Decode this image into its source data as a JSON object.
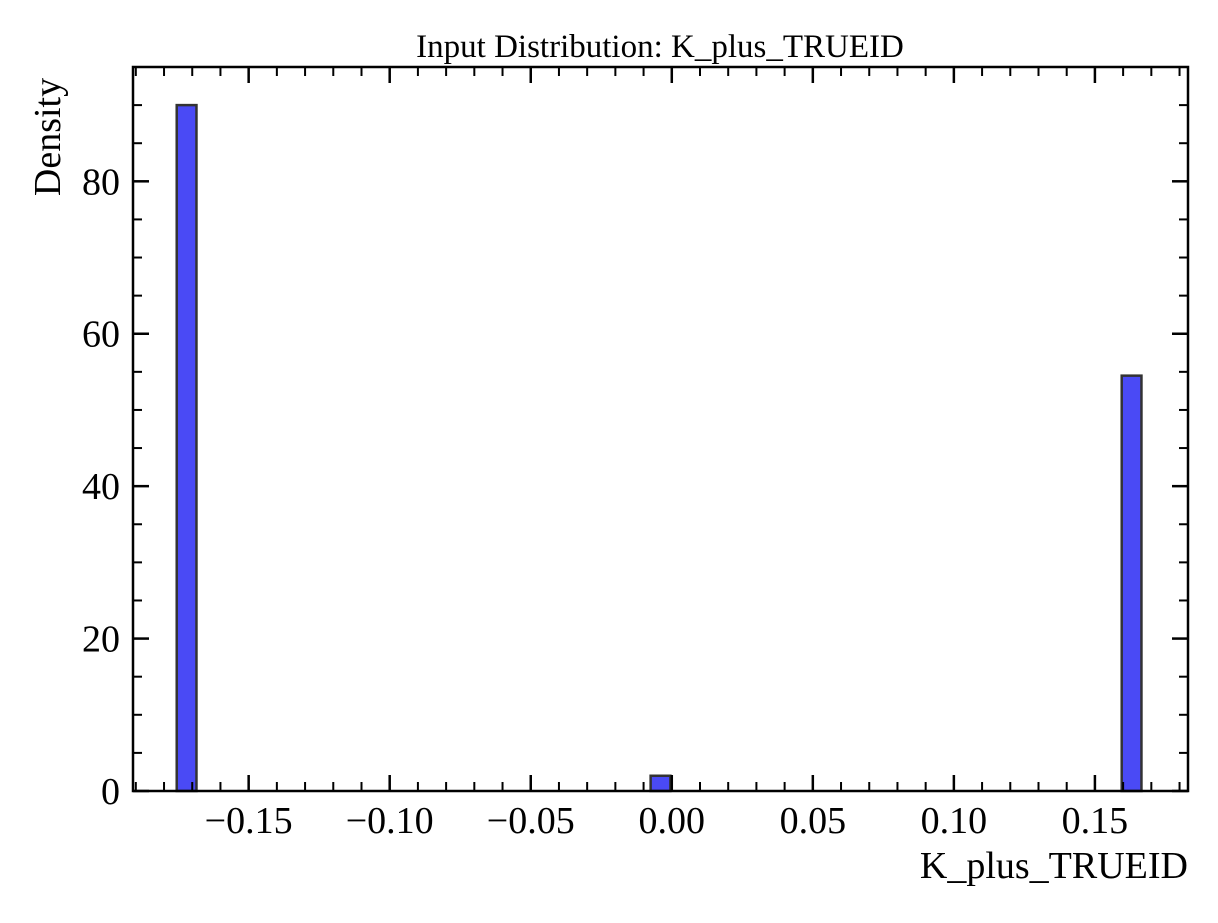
{
  "chart_data": {
    "type": "bar",
    "title": "Input Distribution: K_plus_TRUEID",
    "xlabel": "K_plus_TRUEID",
    "ylabel": "Density",
    "xlim": [
      -0.191,
      0.183
    ],
    "ylim": [
      0,
      95
    ],
    "x_ticks": [
      {
        "value": -0.15,
        "label": "−0.15"
      },
      {
        "value": -0.1,
        "label": "−0.10"
      },
      {
        "value": -0.05,
        "label": "−0.05"
      },
      {
        "value": 0.0,
        "label": "0.00"
      },
      {
        "value": 0.05,
        "label": "0.05"
      },
      {
        "value": 0.1,
        "label": "0.10"
      },
      {
        "value": 0.15,
        "label": "0.15"
      }
    ],
    "y_ticks": [
      {
        "value": 0,
        "label": "0"
      },
      {
        "value": 20,
        "label": "20"
      },
      {
        "value": 40,
        "label": "40"
      },
      {
        "value": 60,
        "label": "60"
      },
      {
        "value": 80,
        "label": "80"
      }
    ],
    "x_minor_step": 0.01,
    "y_minor_step": 5,
    "bars": [
      {
        "x0": -0.1755,
        "x1": -0.1685,
        "value": 90
      },
      {
        "x0": -0.0075,
        "x1": -0.0005,
        "value": 2
      },
      {
        "x0": 0.1595,
        "x1": 0.1665,
        "value": 54.5
      }
    ],
    "colors": {
      "bar_fill": "#4a4af5",
      "bar_edge": "#333333",
      "axis": "#000000"
    },
    "grid": false,
    "legend": false
  }
}
